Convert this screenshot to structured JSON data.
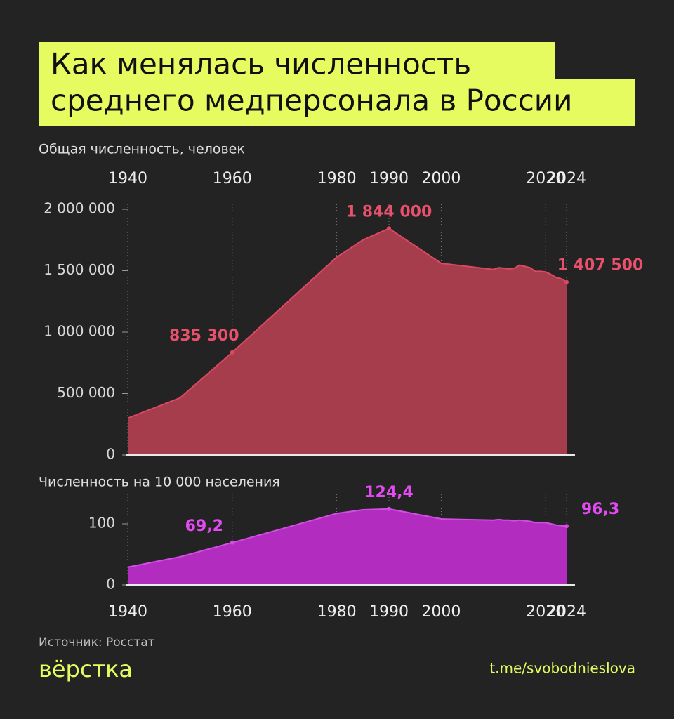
{
  "title": [
    "Как менялась численность",
    "среднего медперсонала в России"
  ],
  "chart_data": [
    {
      "type": "area",
      "subtitle": "Общая численность, человек",
      "x": [
        1940,
        1950,
        1960,
        1980,
        1985,
        1990,
        2000,
        2010,
        2011,
        2012,
        2013,
        2014,
        2015,
        2016,
        2017,
        2018,
        2019,
        2020,
        2021,
        2022,
        2023,
        2024
      ],
      "values": [
        300000,
        465000,
        835300,
        1610000,
        1750000,
        1844000,
        1560000,
        1510000,
        1525000,
        1520000,
        1515000,
        1520000,
        1545000,
        1535000,
        1525000,
        1495000,
        1495000,
        1490000,
        1470000,
        1445000,
        1435000,
        1407500
      ],
      "value_labels": [
        null,
        null,
        "835 300",
        null,
        null,
        "1 844 000",
        null,
        null,
        null,
        null,
        null,
        null,
        null,
        null,
        null,
        null,
        null,
        null,
        null,
        null,
        null,
        "1 407 500"
      ],
      "color": "#a63d4d",
      "line_color": "#dc4862",
      "label_color": "#e9506b",
      "xlim": [
        1940,
        2024
      ],
      "xticks": [
        1940,
        1960,
        1980,
        1990,
        2000,
        2020,
        2024
      ],
      "xaxis": "top",
      "ylim": [
        0,
        2000000
      ],
      "yticks": [
        0,
        {
          "value": 500000,
          "label": "500 000"
        },
        {
          "value": 1000000,
          "label": "1 000 000"
        },
        {
          "value": 1500000,
          "label": "1 500 000"
        },
        {
          "value": 2000000,
          "label": "2 000 000"
        }
      ],
      "grid": "x"
    },
    {
      "type": "area",
      "subtitle": "Численность на 10 000 населения",
      "x": [
        1940,
        1950,
        1960,
        1980,
        1985,
        1990,
        2000,
        2010,
        2011,
        2012,
        2013,
        2014,
        2015,
        2016,
        2017,
        2018,
        2019,
        2020,
        2021,
        2022,
        2023,
        2024
      ],
      "values": [
        29,
        46,
        69.2,
        117,
        123,
        124.4,
        108,
        106,
        107,
        106,
        106,
        105,
        106,
        105,
        104,
        102,
        102,
        102,
        100,
        98,
        97,
        96.3
      ],
      "value_labels": [
        null,
        null,
        "69,2",
        null,
        null,
        "124,4",
        null,
        null,
        null,
        null,
        null,
        null,
        null,
        null,
        null,
        null,
        null,
        null,
        null,
        null,
        null,
        "96,3"
      ],
      "color": "#b22cc0",
      "line_color": "#d24ee3",
      "label_color": "#e44af2",
      "xlim": [
        1940,
        2024
      ],
      "xticks": [
        1940,
        1960,
        1980,
        1990,
        2000,
        2020,
        2024
      ],
      "xaxis": "bottom",
      "ylim": [
        0,
        150
      ],
      "yticks": [
        0,
        100
      ],
      "grid": "x"
    }
  ],
  "footer": {
    "source": "Источник: Росстат",
    "brand": "вёрстка",
    "link": "t.me/svobodnieslova"
  }
}
